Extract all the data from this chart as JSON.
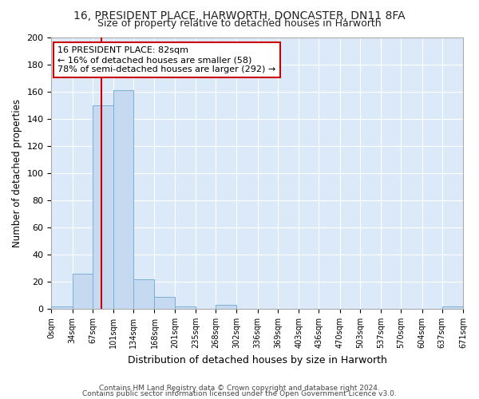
{
  "title1": "16, PRESIDENT PLACE, HARWORTH, DONCASTER, DN11 8FA",
  "title2": "Size of property relative to detached houses in Harworth",
  "xlabel": "Distribution of detached houses by size in Harworth",
  "ylabel": "Number of detached properties",
  "bin_edges": [
    0,
    34,
    67,
    101,
    134,
    168,
    201,
    235,
    268,
    302,
    336,
    369,
    403,
    436,
    470,
    503,
    537,
    570,
    604,
    637,
    671
  ],
  "bar_heights": [
    2,
    26,
    150,
    161,
    22,
    9,
    2,
    0,
    3,
    0,
    0,
    0,
    0,
    0,
    0,
    0,
    0,
    0,
    0,
    2
  ],
  "bar_color": "#c5d9f1",
  "bar_edge_color": "#7bafd4",
  "red_line_x": 82,
  "annotation_line1": "16 PRESIDENT PLACE: 82sqm",
  "annotation_line2": "← 16% of detached houses are smaller (58)",
  "annotation_line3": "78% of semi-detached houses are larger (292) →",
  "annotation_box_color": "#ffffff",
  "annotation_box_edge_color": "#cc0000",
  "ylim": [
    0,
    200
  ],
  "yticks": [
    0,
    20,
    40,
    60,
    80,
    100,
    120,
    140,
    160,
    180,
    200
  ],
  "background_color": "#dce9f8",
  "fig_background_color": "#ffffff",
  "grid_color": "#ffffff",
  "footer1": "Contains HM Land Registry data © Crown copyright and database right 2024.",
  "footer2": "Contains public sector information licensed under the Open Government Licence v3.0."
}
